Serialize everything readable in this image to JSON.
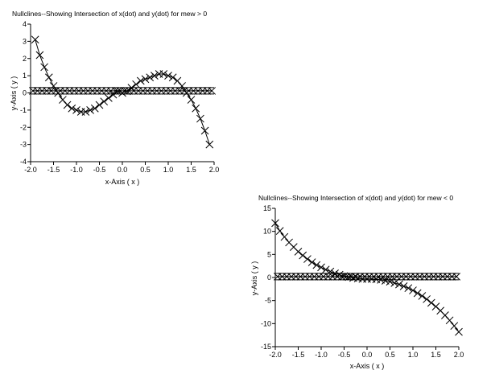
{
  "chart_data": [
    {
      "type": "scatter",
      "title": "Nullclines--Showing Intersection of x(dot) and y(dot) for mew > 0",
      "xlabel": "x-Axis ( x )",
      "ylabel": "y-Axis ( y )",
      "xlim": [
        -2,
        2
      ],
      "ylim": [
        -4,
        4
      ],
      "xticks": [
        "-2.0",
        "-1.5",
        "-1.0",
        "-0.5",
        "0.0",
        "0.5",
        "1.0",
        "1.5",
        "2.0"
      ],
      "yticks": [
        "4",
        "3",
        "2",
        "1",
        "0",
        "-1",
        "-2",
        "-3",
        "-4"
      ],
      "grid": false,
      "series": [
        {
          "marker": "x",
          "x": [
            -1.9,
            -1.8,
            -1.7,
            -1.6,
            -1.5,
            -1.4,
            -1.3,
            -1.2,
            -1.1,
            -1.0,
            -0.9,
            -0.8,
            -0.7,
            -0.6,
            -0.5,
            -0.4,
            -0.3,
            -0.2,
            -0.1,
            0.0,
            0.1,
            0.2,
            0.3,
            0.4,
            0.5,
            0.6,
            0.7,
            0.8,
            0.9,
            1.0,
            1.1,
            1.2,
            1.3,
            1.4,
            1.5,
            1.6,
            1.7,
            1.8,
            1.9
          ],
          "y": [
            3.1,
            2.2,
            1.5,
            0.9,
            0.4,
            0.0,
            -0.4,
            -0.7,
            -0.9,
            -1.0,
            -1.1,
            -1.1,
            -1.0,
            -0.9,
            -0.7,
            -0.5,
            -0.3,
            -0.1,
            0.1,
            0.0,
            0.1,
            0.3,
            0.5,
            0.7,
            0.8,
            0.9,
            1.0,
            1.1,
            1.1,
            1.0,
            0.9,
            0.7,
            0.4,
            0.0,
            -0.4,
            -0.9,
            -1.5,
            -2.2,
            -3.0
          ]
        },
        {
          "marker": "x",
          "x": [
            -1.95,
            -1.85,
            -1.75,
            -1.65,
            -1.55,
            -1.45,
            -1.35,
            -1.25,
            -1.15,
            -1.05,
            -0.95,
            -0.85,
            -0.75,
            -0.65,
            -0.55,
            -0.45,
            -0.35,
            -0.25,
            -0.15,
            -0.05,
            0.05,
            0.15,
            0.25,
            0.35,
            0.45,
            0.55,
            0.65,
            0.75,
            0.85,
            0.95,
            1.05,
            1.15,
            1.25,
            1.35,
            1.45,
            1.55,
            1.65,
            1.75,
            1.85,
            1.95
          ],
          "y": [
            0.12,
            0.12,
            0.12,
            0.12,
            0.12,
            0.12,
            0.12,
            0.12,
            0.12,
            0.12,
            0.12,
            0.12,
            0.12,
            0.12,
            0.12,
            0.12,
            0.12,
            0.12,
            0.12,
            0.12,
            0.12,
            0.12,
            0.12,
            0.12,
            0.12,
            0.12,
            0.12,
            0.12,
            0.12,
            0.12,
            0.12,
            0.12,
            0.12,
            0.12,
            0.12,
            0.12,
            0.12,
            0.12,
            0.12,
            0.12
          ]
        }
      ]
    },
    {
      "type": "scatter",
      "title": "Nullclines--Showing Intersection of x(dot) and y(dot) for mew < 0",
      "xlabel": "x-Axis ( x )",
      "ylabel": "y-Axis ( y )",
      "xlim": [
        -2,
        2
      ],
      "ylim": [
        -15,
        15
      ],
      "xticks": [
        "-2.0",
        "-1.5",
        "-1.0",
        "-0.5",
        "0.0",
        "0.5",
        "1.0",
        "1.5",
        "2.0"
      ],
      "yticks": [
        "15",
        "10",
        "5",
        "0",
        "-5",
        "-10",
        "-15"
      ],
      "grid": false,
      "series": [
        {
          "marker": "x",
          "x": [
            -2.0,
            -1.9,
            -1.8,
            -1.7,
            -1.6,
            -1.5,
            -1.4,
            -1.3,
            -1.2,
            -1.1,
            -1.0,
            -0.9,
            -0.8,
            -0.7,
            -0.6,
            -0.5,
            -0.4,
            -0.3,
            -0.2,
            -0.1,
            0.0,
            0.1,
            0.2,
            0.3,
            0.4,
            0.5,
            0.6,
            0.7,
            0.8,
            0.9,
            1.0,
            1.1,
            1.2,
            1.3,
            1.4,
            1.5,
            1.6,
            1.7,
            1.8,
            1.9,
            2.0
          ],
          "y": [
            11.8,
            10.1,
            8.8,
            7.6,
            6.6,
            5.6,
            4.8,
            4.0,
            3.3,
            2.7,
            2.2,
            1.7,
            1.3,
            0.9,
            0.6,
            0.3,
            0.1,
            -0.1,
            -0.2,
            -0.3,
            -0.3,
            -0.3,
            -0.4,
            -0.5,
            -0.7,
            -0.9,
            -1.2,
            -1.5,
            -1.9,
            -2.3,
            -2.8,
            -3.4,
            -4.0,
            -4.7,
            -5.5,
            -6.3,
            -7.2,
            -8.2,
            -9.3,
            -10.5,
            -11.8
          ]
        },
        {
          "marker": "x",
          "x": [
            -1.95,
            -1.85,
            -1.75,
            -1.65,
            -1.55,
            -1.45,
            -1.35,
            -1.25,
            -1.15,
            -1.05,
            -0.95,
            -0.85,
            -0.75,
            -0.65,
            -0.55,
            -0.45,
            -0.35,
            -0.25,
            -0.15,
            -0.05,
            0.05,
            0.15,
            0.25,
            0.35,
            0.45,
            0.55,
            0.65,
            0.75,
            0.85,
            0.95,
            1.05,
            1.15,
            1.25,
            1.35,
            1.45,
            1.55,
            1.65,
            1.75,
            1.85,
            1.95
          ],
          "y": [
            0.2,
            0.2,
            0.2,
            0.2,
            0.2,
            0.2,
            0.2,
            0.2,
            0.2,
            0.2,
            0.2,
            0.2,
            0.2,
            0.2,
            0.2,
            0.2,
            0.2,
            0.2,
            0.2,
            0.2,
            0.2,
            0.2,
            0.2,
            0.2,
            0.2,
            0.2,
            0.2,
            0.2,
            0.2,
            0.2,
            0.2,
            0.2,
            0.2,
            0.2,
            0.2,
            0.2,
            0.2,
            0.2,
            0.2,
            0.2
          ]
        }
      ]
    }
  ]
}
